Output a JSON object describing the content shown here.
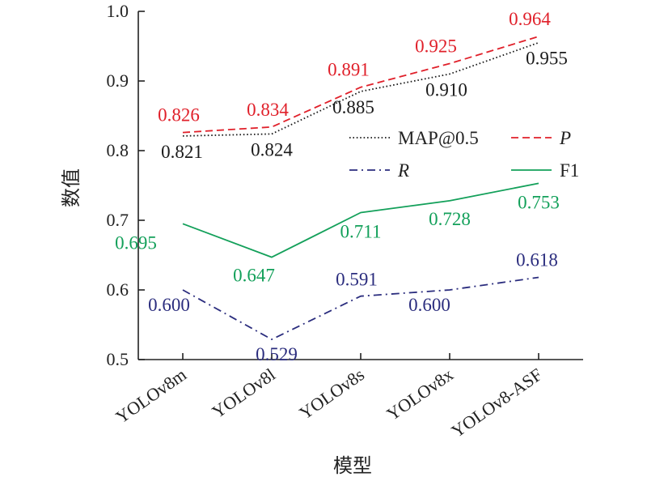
{
  "chart_data": {
    "type": "line",
    "xlabel": "模型",
    "ylabel": "数值",
    "ylim": [
      0.5,
      1.0
    ],
    "yticks": [
      "0.5",
      "0.6",
      "0.7",
      "0.8",
      "0.9",
      "1.0"
    ],
    "categories": [
      "YOLOv8m",
      "YOLOv8l",
      "YOLOv8s",
      "YOLOv8x",
      "YOLOv8-ASF"
    ],
    "grid": false,
    "legend": "inside-upper-right",
    "series": [
      {
        "key": "map",
        "name": "MAP@0.5",
        "color": "#1a1a1a",
        "dash": "dotted",
        "values": [
          0.821,
          0.824,
          0.885,
          0.91,
          0.955
        ],
        "labels": [
          "0.821",
          "0.824",
          "0.885",
          "0.910",
          "0.955"
        ]
      },
      {
        "key": "p",
        "name": "P",
        "color": "#e0202a",
        "dash": "dashed",
        "values": [
          0.826,
          0.834,
          0.891,
          0.925,
          0.964
        ],
        "labels": [
          "0.826",
          "0.834",
          "0.891",
          "0.925",
          "0.964"
        ]
      },
      {
        "key": "r",
        "name": "R",
        "color": "#2b2d7e",
        "dash": "dashdot",
        "values": [
          0.6,
          0.529,
          0.591,
          0.6,
          0.618
        ],
        "labels": [
          "0.600",
          "0.529",
          "0.591",
          "0.600",
          "0.618"
        ]
      },
      {
        "key": "f1",
        "name": "F1",
        "color": "#13a05a",
        "dash": "solid",
        "values": [
          0.695,
          0.647,
          0.711,
          0.728,
          0.753
        ],
        "labels": [
          "0.695",
          "0.647",
          "0.711",
          "0.728",
          "0.753"
        ]
      }
    ]
  }
}
